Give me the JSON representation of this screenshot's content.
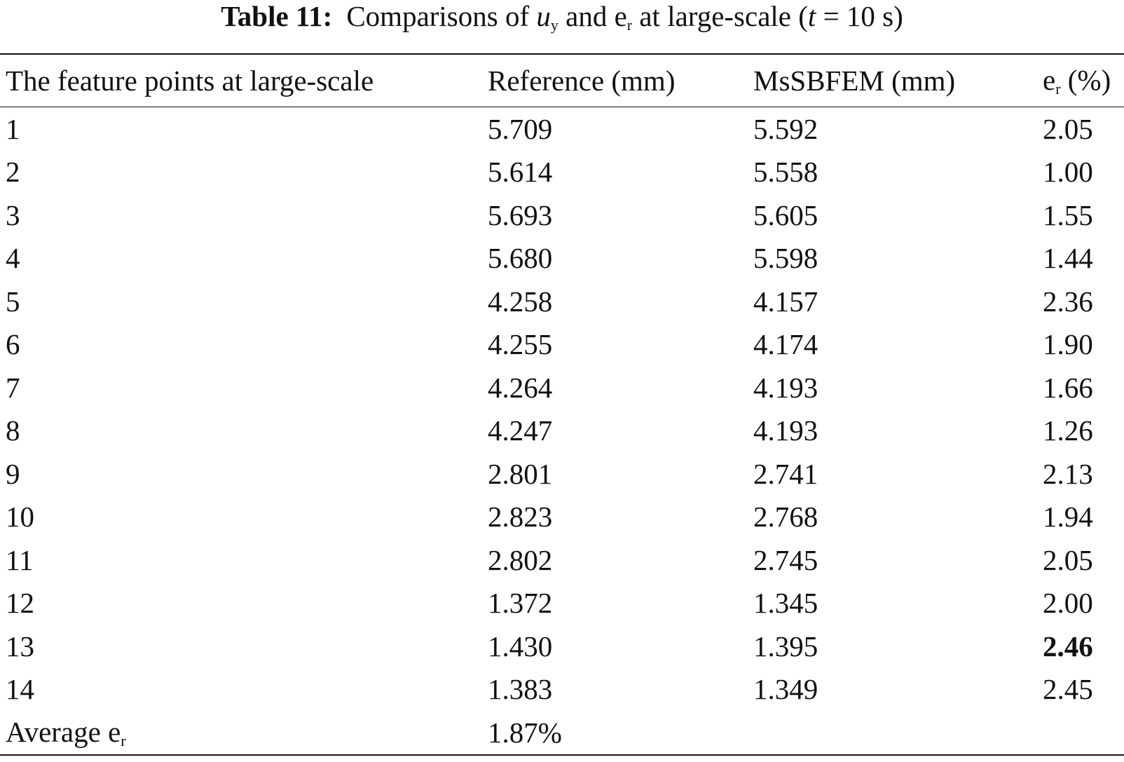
{
  "caption": {
    "label": "Table 11:",
    "segments": [
      {
        "text": "Comparisons of "
      },
      {
        "text": "u",
        "italic": true
      },
      {
        "text": "y",
        "sub": true
      },
      {
        "text": " and e"
      },
      {
        "text": "r",
        "sub": true
      },
      {
        "text": " at large-scale ("
      },
      {
        "text": "t",
        "italic": true
      },
      {
        "text": " = 10 s)"
      }
    ]
  },
  "table": {
    "header": [
      "The feature points at large-scale",
      "Reference (mm)",
      "MsSBFEM (mm)",
      [
        {
          "text": "e"
        },
        {
          "text": "r",
          "sub": true
        },
        {
          "text": " (%)"
        }
      ]
    ],
    "rows": [
      [
        "1",
        "5.709",
        "5.592",
        "2.05"
      ],
      [
        "2",
        "5.614",
        "5.558",
        "1.00"
      ],
      [
        "3",
        "5.693",
        "5.605",
        "1.55"
      ],
      [
        "4",
        "5.680",
        "5.598",
        "1.44"
      ],
      [
        "5",
        "4.258",
        "4.157",
        "2.36"
      ],
      [
        "6",
        "4.255",
        "4.174",
        "1.90"
      ],
      [
        "7",
        "4.264",
        "4.193",
        "1.66"
      ],
      [
        "8",
        "4.247",
        "4.193",
        "1.26"
      ],
      [
        "9",
        "2.801",
        "2.741",
        "2.13"
      ],
      [
        "10",
        "2.823",
        "2.768",
        "1.94"
      ],
      [
        "11",
        "2.802",
        "2.745",
        "2.05"
      ],
      [
        "12",
        "1.372",
        "1.345",
        "2.00"
      ],
      [
        "13",
        "1.430",
        "1.395",
        "2.46"
      ],
      [
        "14",
        "1.383",
        "1.349",
        "2.45"
      ]
    ],
    "average": {
      "label": [
        {
          "text": "Average e"
        },
        {
          "text": "r",
          "sub": true
        }
      ],
      "value": "1.87%"
    }
  }
}
